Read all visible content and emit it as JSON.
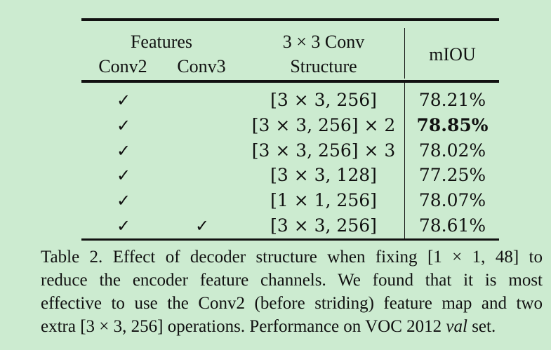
{
  "table": {
    "header": {
      "features_label": "Features",
      "conv2_label": "Conv2",
      "conv3_label": "Conv3",
      "conv_title": "3 × 3 Conv",
      "conv_subtitle": "Structure",
      "miou_label": "mIOU"
    },
    "rows": [
      {
        "conv2": "✓",
        "conv3": "",
        "structure": "[3 × 3, 256]",
        "miou": "78.21%",
        "best": false
      },
      {
        "conv2": "✓",
        "conv3": "",
        "structure": "[3 × 3, 256] × 2",
        "miou": "78.85%",
        "best": true
      },
      {
        "conv2": "✓",
        "conv3": "",
        "structure": "[3 × 3, 256] × 3",
        "miou": "78.02%",
        "best": false
      },
      {
        "conv2": "✓",
        "conv3": "",
        "structure": "[3 × 3, 128]",
        "miou": "77.25%",
        "best": false
      },
      {
        "conv2": "✓",
        "conv3": "",
        "structure": "[1 × 1, 256]",
        "miou": "78.07%",
        "best": false
      },
      {
        "conv2": "✓",
        "conv3": "✓",
        "structure": "[3 × 3, 256]",
        "miou": "78.61%",
        "best": false
      }
    ]
  },
  "caption": {
    "line1": "Table 2. Effect of decoder structure when fixing [1 × 1, 48] to",
    "line2": "reduce the encoder feature channels.  We found that it is most",
    "line3": "effective to use the Conv2 (before striding) feature map and two",
    "line4_prefix": "extra [3 × 3, 256] operations. Performance on VOC 2012 ",
    "line4_italic": "val",
    "line4_suffix": " set."
  }
}
